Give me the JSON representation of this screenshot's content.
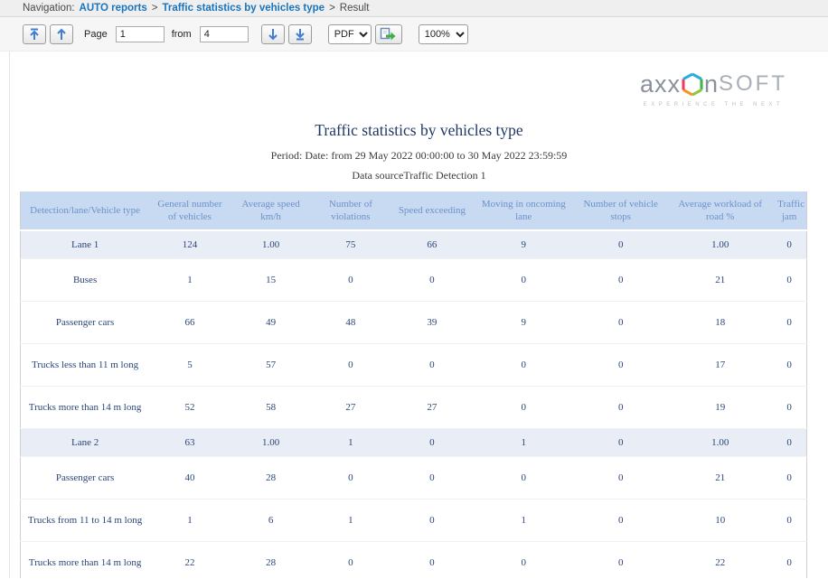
{
  "nav": {
    "label": "Navigation:",
    "separator": ">",
    "items": [
      {
        "label": "AUTO reports"
      },
      {
        "label": "Traffic statistics by vehicles type"
      },
      {
        "label": "Result"
      }
    ]
  },
  "toolbar": {
    "page_label": "Page",
    "page_value": "1",
    "from_label": "from",
    "from_value": "4",
    "format_value": "PDF",
    "zoom_value": "100%"
  },
  "logo": {
    "text_left": "axx",
    "text_n": "n",
    "text_soft": "SOFT",
    "tagline": "EXPERIENCE THE NEXT"
  },
  "report": {
    "title": "Traffic statistics by vehicles type",
    "period": "Period: Date: from 29 May 2022 00:00:00 to 30 May 2022 23:59:59",
    "data_source": "Data sourceTraffic Detection 1"
  },
  "table": {
    "columns": [
      "Detection/lane/Vehicle type",
      "General number of vehicles",
      "Average speed km/h",
      "Number of violations",
      "Speed exceeding",
      "Moving in oncoming lane",
      "Number of vehicle stops",
      "Average workload of road %",
      "Traffic jam"
    ],
    "rows": [
      {
        "type": "lane",
        "label": "Lane 1",
        "values": [
          "124",
          "1.00",
          "75",
          "66",
          "9",
          "0",
          "1.00",
          "0"
        ]
      },
      {
        "type": "vehicle",
        "label": "Buses",
        "values": [
          "1",
          "15",
          "0",
          "0",
          "0",
          "0",
          "21",
          "0"
        ]
      },
      {
        "type": "vehicle",
        "label": "Passenger cars",
        "values": [
          "66",
          "49",
          "48",
          "39",
          "9",
          "0",
          "18",
          "0"
        ]
      },
      {
        "type": "vehicle",
        "label": "Trucks less than 11 m long",
        "values": [
          "5",
          "57",
          "0",
          "0",
          "0",
          "0",
          "17",
          "0"
        ]
      },
      {
        "type": "vehicle",
        "label": "Trucks more than 14 m long",
        "values": [
          "52",
          "58",
          "27",
          "27",
          "0",
          "0",
          "19",
          "0"
        ]
      },
      {
        "type": "lane",
        "label": "Lane 2",
        "values": [
          "63",
          "1.00",
          "1",
          "0",
          "1",
          "0",
          "1.00",
          "0"
        ]
      },
      {
        "type": "vehicle",
        "label": "Passenger cars",
        "values": [
          "40",
          "28",
          "0",
          "0",
          "0",
          "0",
          "21",
          "0"
        ]
      },
      {
        "type": "vehicle",
        "label": "Trucks from 11 to 14 m long",
        "values": [
          "1",
          "6",
          "1",
          "0",
          "1",
          "0",
          "10",
          "0"
        ]
      },
      {
        "type": "vehicle",
        "label": "Trucks more than 14 m long",
        "values": [
          "22",
          "28",
          "0",
          "0",
          "0",
          "0",
          "22",
          "0"
        ]
      }
    ]
  },
  "colors": {
    "accent_link": "#1a74bc",
    "header_bg": "#c8daf1",
    "header_text": "#6b92c9",
    "lane_row_bg": "#e9edf6",
    "cell_text": "#2a4679",
    "title_text": "#1f3864",
    "toolbar_icon": "#3f7fd3"
  }
}
